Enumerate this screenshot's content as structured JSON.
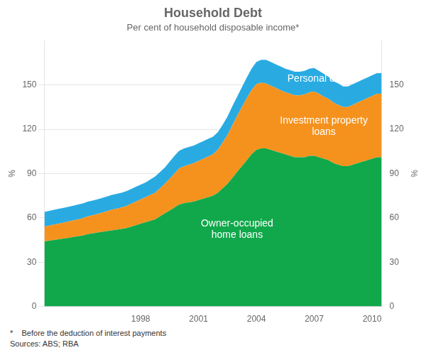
{
  "chart_data": {
    "type": "area",
    "title": "Household Debt",
    "subtitle": "Per cent of household disposable income*",
    "footnote": "*    Before the deduction of interest payments",
    "sources": "Sources: ABS; RBA",
    "ylabel": "%",
    "y2label": "%",
    "stacked": true,
    "grid": true,
    "x": [
      1993.0,
      1993.25,
      1993.5,
      1993.75,
      1994.0,
      1994.25,
      1994.5,
      1994.75,
      1995.0,
      1995.25,
      1995.5,
      1995.75,
      1996.0,
      1996.25,
      1996.5,
      1996.75,
      1997.0,
      1997.25,
      1997.5,
      1997.75,
      1998.0,
      1998.25,
      1998.5,
      1998.75,
      1999.0,
      1999.25,
      1999.5,
      1999.75,
      2000.0,
      2000.25,
      2000.5,
      2000.75,
      2001.0,
      2001.25,
      2001.5,
      2001.75,
      2002.0,
      2002.25,
      2002.5,
      2002.75,
      2003.0,
      2003.25,
      2003.5,
      2003.75,
      2004.0,
      2004.25,
      2004.5,
      2004.75,
      2005.0,
      2005.25,
      2005.5,
      2005.75,
      2006.0,
      2006.25,
      2006.5,
      2006.75,
      2007.0,
      2007.25,
      2007.5,
      2007.75,
      2008.0,
      2008.25,
      2008.5,
      2008.75,
      2009.0,
      2009.25,
      2009.5,
      2009.75,
      2010.0,
      2010.25,
      2010.5
    ],
    "xlim": [
      1993.0,
      2010.5
    ],
    "xticks": [
      1998,
      2001,
      2004,
      2007,
      2010
    ],
    "ylim": [
      0,
      180
    ],
    "yticks": [
      0,
      30,
      60,
      90,
      120,
      150
    ],
    "y2lim": [
      0,
      180
    ],
    "y2ticks": [
      0,
      30,
      60,
      90,
      120,
      150
    ],
    "series": [
      {
        "name": "Owner-occupied\nhome loans",
        "color": "#10A84A",
        "values": [
          44,
          44.5,
          45,
          45.5,
          46,
          46.5,
          47,
          47.5,
          48,
          49,
          49.5,
          50,
          50.5,
          51,
          51.5,
          52,
          52.5,
          53,
          54,
          55,
          56,
          57,
          58,
          59,
          61,
          63,
          65,
          67,
          69,
          70,
          70.5,
          71,
          72,
          73,
          74,
          75,
          77,
          80,
          83,
          87,
          91,
          95,
          99,
          103,
          106,
          107,
          107,
          106,
          105,
          104,
          103,
          102,
          101,
          101,
          101,
          102,
          102,
          101,
          100,
          99,
          97,
          96,
          95,
          95,
          96,
          97,
          98,
          99,
          100,
          101,
          101
        ]
      },
      {
        "name": "Investment property\nloans",
        "color": "#F5921E",
        "values": [
          10,
          10.2,
          10.4,
          10.6,
          10.8,
          11,
          11.2,
          11.5,
          11.8,
          12,
          12.2,
          12.5,
          13,
          13.5,
          14,
          14.2,
          14.5,
          15,
          15.5,
          16,
          16.5,
          17,
          17.5,
          18,
          19,
          20,
          21.5,
          23,
          24.5,
          25,
          25.5,
          26,
          26.5,
          27,
          27.5,
          28,
          29,
          31,
          33,
          35.5,
          38,
          40,
          42,
          43.5,
          44.5,
          44.5,
          44,
          43.5,
          43,
          42.5,
          42,
          42,
          42,
          42,
          42.5,
          43,
          43.5,
          43,
          42,
          41.5,
          41,
          40.5,
          40,
          40,
          40.5,
          41,
          41.5,
          42,
          42.5,
          43,
          43
        ]
      },
      {
        "name": "Personal debt",
        "color": "#29ABE2",
        "values": [
          10,
          10,
          10,
          10,
          10,
          10,
          10,
          10,
          10,
          10,
          10,
          10,
          10,
          10,
          10,
          10,
          10,
          10,
          10,
          10,
          10,
          10,
          10.5,
          11,
          11,
          11,
          11.5,
          12,
          12,
          12,
          12,
          12,
          12,
          12,
          12,
          12,
          12,
          12,
          12.5,
          13,
          13,
          13.5,
          14,
          14.5,
          15,
          15.5,
          16,
          16,
          16,
          16,
          16,
          16,
          16,
          16,
          16,
          16,
          16,
          15.5,
          15.5,
          15,
          14.5,
          14.5,
          14,
          14,
          14,
          14,
          14,
          14,
          14,
          14,
          14
        ]
      }
    ],
    "annotations": [
      {
        "text": "Owner-occupied\nhome loans",
        "x": 2003.0,
        "y": 52
      },
      {
        "text": "Investment property\nloans",
        "x": 2007.5,
        "y": 122
      },
      {
        "text": "Personal debt",
        "x": 2007.2,
        "y": 154
      }
    ]
  }
}
